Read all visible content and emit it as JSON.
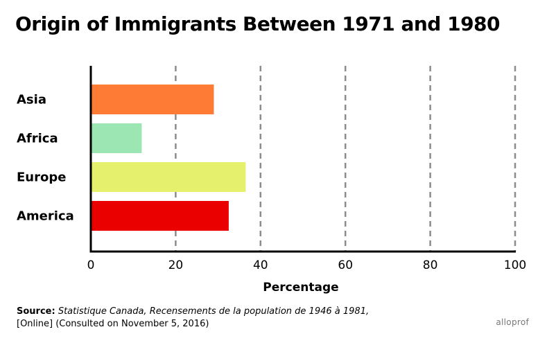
{
  "chart_data": {
    "type": "bar",
    "orientation": "horizontal",
    "title": "Origin of Immigrants Between 1971 and 1980",
    "xlabel": "Percentage",
    "ylabel": "",
    "xlim": [
      0,
      100
    ],
    "x_ticks": [
      0,
      20,
      40,
      60,
      80,
      100
    ],
    "grid": "vertical dashed",
    "categories": [
      "Asia",
      "Africa",
      "Europe",
      "America"
    ],
    "values": [
      29,
      12,
      36.5,
      32.5
    ],
    "colors": [
      "#fd7b35",
      "#9ce6b3",
      "#e5f06d",
      "#eb0000"
    ]
  },
  "source": {
    "label": "Source:",
    "italic_text": "Statistique Canada, Recensements de la population de 1946 à 1981,",
    "line2": "[Online] (Consulted on November 5, 2016)"
  },
  "brand": "alloprof"
}
